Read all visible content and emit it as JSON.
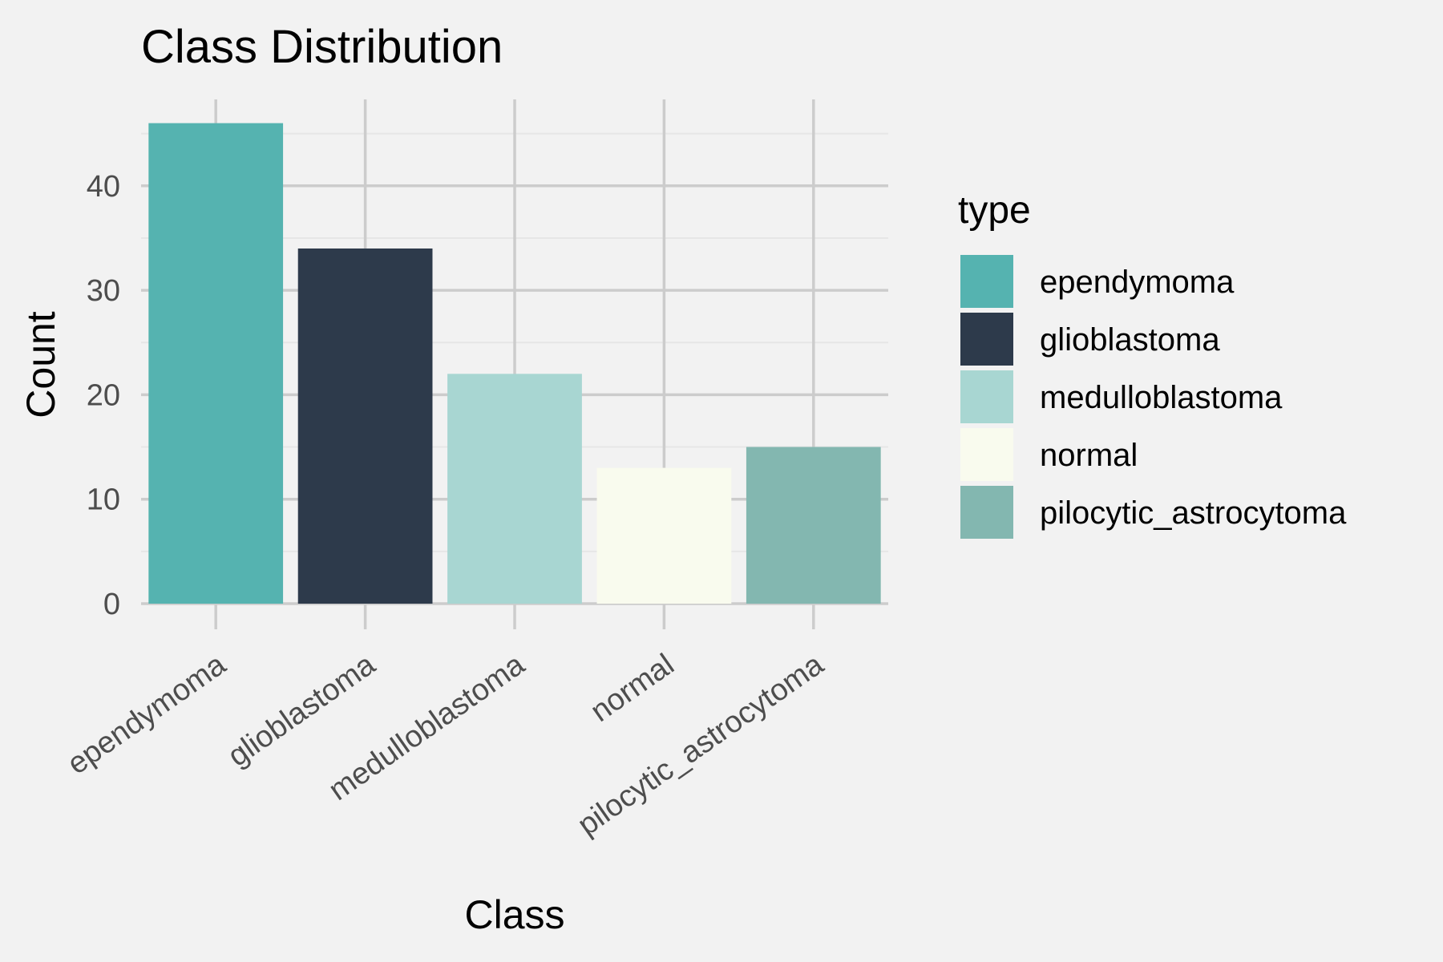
{
  "chart_data": {
    "type": "bar",
    "title": "Class Distribution",
    "xlabel": "Class",
    "ylabel": "Count",
    "categories": [
      "ependymoma",
      "glioblastoma",
      "medulloblastoma",
      "normal",
      "pilocytic_astrocytoma"
    ],
    "values": [
      46,
      34,
      22,
      13,
      15
    ],
    "colors": [
      "#55b3b0",
      "#2d3a4b",
      "#a8d6d2",
      "#f9fbee",
      "#83b7b0"
    ],
    "ylim": [
      0,
      48
    ],
    "yticks": [
      0,
      10,
      20,
      30,
      40
    ],
    "grid": true,
    "legend": {
      "title": "type",
      "position": "right",
      "items": [
        "ependymoma",
        "glioblastoma",
        "medulloblastoma",
        "normal",
        "pilocytic_astrocytoma"
      ]
    }
  }
}
